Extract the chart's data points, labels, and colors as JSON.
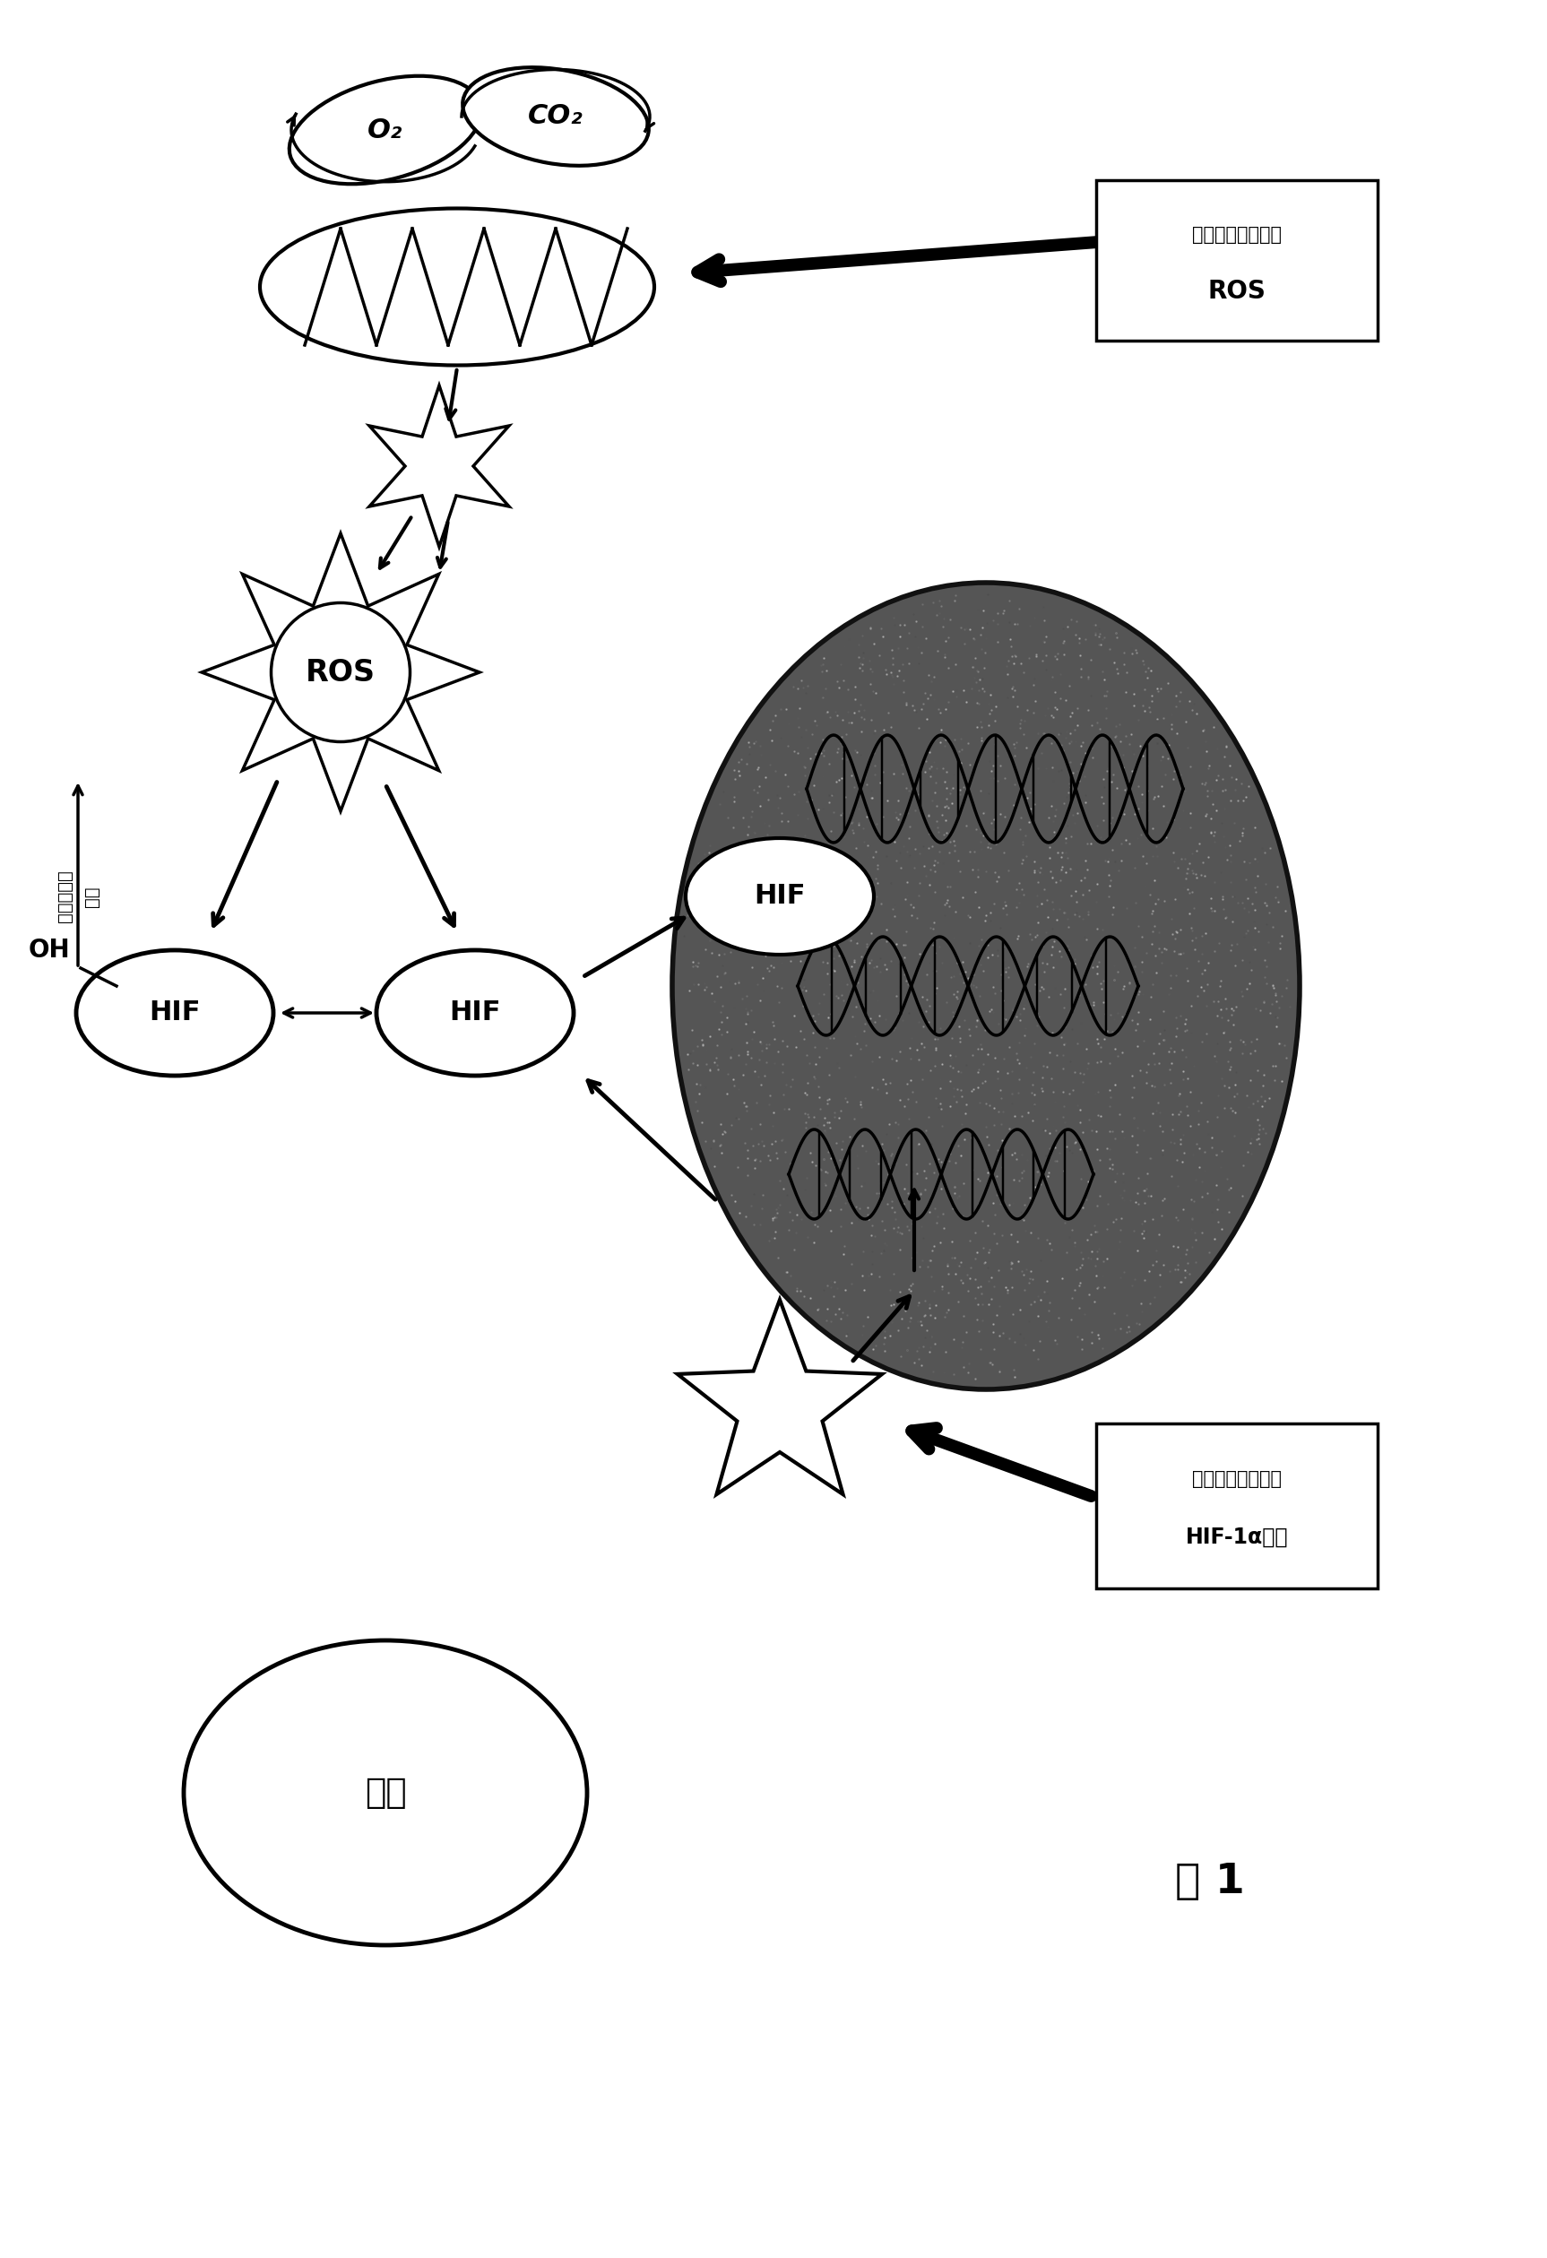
{
  "bg_color": "#ffffff",
  "title": "图 1",
  "box1_line1": "本发明化合物上调",
  "box1_line2": "ROS",
  "box2_line1": "本发明化合物抑制",
  "box2_line2": "HIF-1α表达",
  "label_oh": "OH",
  "label_hif1": "HIF",
  "label_hif2": "HIF",
  "label_hif3": "HIF",
  "label_ros": "ROS",
  "label_o2": "O₂",
  "label_co2": "CO₂",
  "label_iron": "鐵矾",
  "degrade_text1": "遭在蛋白化",
  "degrade_text2": "降解",
  "nucleus_color": "#666666",
  "nucleus_edge": "#222222"
}
